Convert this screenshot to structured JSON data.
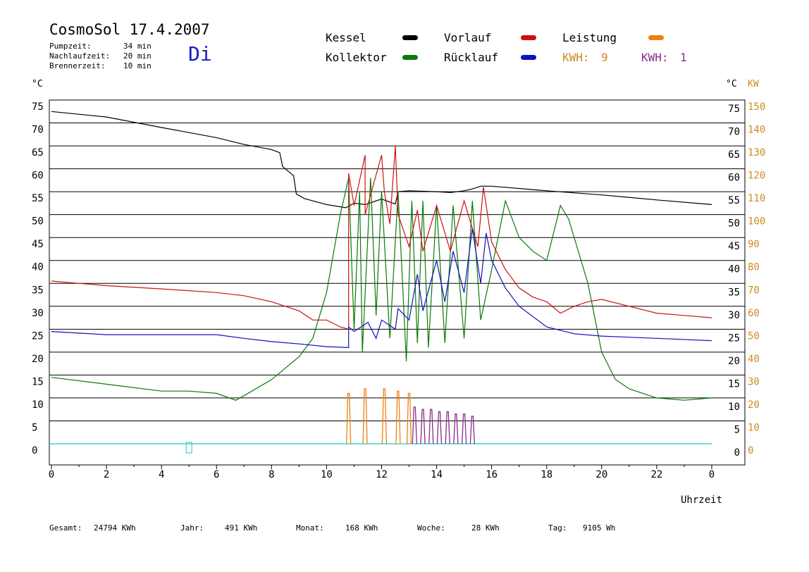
{
  "header": {
    "title": "CosmoSol 17.4.2007",
    "day": "Di",
    "timers": [
      {
        "label": "Pumpzeit:",
        "value": "34 min"
      },
      {
        "label": "Nachlaufzeit:",
        "value": "20 min"
      },
      {
        "label": "Brennerzeit:",
        "value": "10 min"
      }
    ]
  },
  "legend": {
    "kessel": "Kessel",
    "kollektor": "Kollektor",
    "vorlauf": "Vorlauf",
    "ruecklauf": "Rücklauf",
    "leistung": "Leistung",
    "kwh1_label": "KWH:",
    "kwh1_value": "9",
    "kwh2_label": "KWH:",
    "kwh2_value": "1"
  },
  "colors": {
    "kessel": "#000000",
    "kollektor": "#0a7a0a",
    "vorlauf": "#d01010",
    "ruecklauf": "#1010c0",
    "leistung": "#f08010",
    "kwh2": "#8a2a8a",
    "axis_kw": "#d08a20",
    "zero_line": "#40d0d0"
  },
  "axes": {
    "left_unit": "°C",
    "right_unit": "°C",
    "kw_unit": "KW",
    "xlabel": "Uhrzeit"
  },
  "footer": {
    "gesamt_label": "Gesamt:",
    "gesamt_value": "24794 KWh",
    "jahr_label": "Jahr:",
    "jahr_value": "491 KWh",
    "monat_label": "Monat:",
    "monat_value": "168 KWh",
    "woche_label": "Woche:",
    "woche_value": "28 KWh",
    "tag_label": "Tag:",
    "tag_value": "9105 Wh"
  },
  "chart_data": {
    "type": "line",
    "xlim": [
      0,
      24
    ],
    "ylim": [
      0,
      75
    ],
    "y2lim": [
      0,
      150
    ],
    "x_ticks": [
      "0",
      "2",
      "4",
      "6",
      "8",
      "10",
      "12",
      "14",
      "16",
      "18",
      "20",
      "22",
      "0"
    ],
    "y_ticks": [
      0,
      5,
      10,
      15,
      20,
      25,
      30,
      35,
      40,
      45,
      50,
      55,
      60,
      65,
      70,
      75
    ],
    "y2_ticks": [
      0,
      10,
      20,
      30,
      40,
      50,
      60,
      70,
      80,
      90,
      100,
      110,
      120,
      130,
      140,
      150
    ],
    "grid": true,
    "series": [
      {
        "name": "Kessel",
        "x": [
          0,
          2,
          4,
          6,
          7,
          8,
          8.3,
          8.4,
          8.6,
          8.8,
          8.9,
          9.2,
          10,
          10.7,
          11,
          11.4,
          12,
          12.5,
          12.6,
          13,
          14,
          14.5,
          15,
          15.3,
          15.6,
          16,
          18,
          20,
          22,
          24
        ],
        "y": [
          72.5,
          71.3,
          69,
          66.8,
          65.3,
          64.2,
          63.5,
          60.5,
          59.5,
          58.5,
          54.5,
          53.5,
          52.2,
          51.5,
          52.5,
          52.2,
          53.4,
          52.3,
          55,
          55.2,
          55,
          54.8,
          55.2,
          55.6,
          56.2,
          56.2,
          55.2,
          54.3,
          53.2,
          52.2
        ]
      },
      {
        "name": "Kollektor",
        "x": [
          0,
          2,
          4,
          5,
          6,
          6.7,
          7,
          8,
          9,
          9.5,
          10,
          10.5,
          10.8,
          11,
          11.2,
          11.3,
          11.6,
          11.8,
          12,
          12.3,
          12.6,
          12.9,
          13.1,
          13.3,
          13.5,
          13.7,
          14,
          14.3,
          14.6,
          15,
          15.3,
          15.6,
          16,
          16.5,
          17,
          17.5,
          18,
          18.5,
          18.8,
          19.5,
          20,
          20.5,
          21,
          22,
          23,
          24
        ],
        "y": [
          14.5,
          13,
          11.5,
          11.5,
          11,
          9.5,
          10.5,
          14,
          19,
          23,
          33,
          50,
          58,
          25,
          55,
          20,
          58,
          28,
          55,
          23,
          55,
          18,
          53,
          22,
          53,
          21,
          52,
          22,
          52,
          23,
          53,
          27,
          38,
          53,
          45,
          42,
          40,
          52,
          49,
          35,
          20,
          14,
          12,
          10,
          9.5,
          10
        ]
      },
      {
        "name": "Vorlauf",
        "x": [
          0,
          2,
          4,
          6,
          7,
          8,
          9,
          9.5,
          10,
          10.5,
          10.8,
          10.8,
          11,
          11.4,
          11.4,
          12,
          12.1,
          12.3,
          12.5,
          12.6,
          13,
          13.3,
          13.5,
          14,
          14.5,
          15,
          15.5,
          15.7,
          16,
          16.5,
          17,
          17.5,
          18,
          18.5,
          19,
          19.5,
          20,
          21,
          22,
          23,
          24
        ],
        "y": [
          35.5,
          34.5,
          33.8,
          33,
          32.3,
          31,
          29,
          27,
          27,
          25.5,
          25,
          59,
          52,
          63,
          50,
          63,
          55,
          48,
          65,
          50,
          43,
          51,
          42,
          52,
          42,
          53,
          43,
          56,
          44,
          38,
          34,
          32,
          31,
          28.5,
          30,
          31,
          31.5,
          30,
          28.5,
          28,
          27.5
        ]
      },
      {
        "name": "Rücklauf",
        "x": [
          0,
          2,
          4,
          6,
          7,
          8,
          9,
          10,
          10.8,
          10.8,
          11,
          11.5,
          11.8,
          12,
          12.5,
          12.6,
          13,
          13.3,
          13.5,
          14,
          14.3,
          14.6,
          15,
          15.3,
          15.6,
          15.8,
          16,
          16.5,
          17,
          18,
          19,
          20,
          22,
          24
        ],
        "y": [
          24.5,
          23.8,
          23.8,
          23.8,
          23,
          22.3,
          21.8,
          21.2,
          21,
          25.5,
          24.5,
          26.5,
          23,
          27,
          25,
          29.5,
          27,
          37,
          29,
          40,
          31,
          42,
          33,
          47,
          35,
          46,
          40,
          34,
          30,
          25.5,
          24,
          23.5,
          23,
          22.5
        ]
      },
      {
        "name": "Leistung",
        "x": [
          10.8,
          11.4,
          12.1,
          12.6,
          13.0
        ],
        "y": [
          11,
          12,
          12,
          11.5,
          11
        ]
      },
      {
        "name": "Brennerleistung",
        "x": [
          13.2,
          13.5,
          13.8,
          14.1,
          14.4,
          14.7,
          15.0,
          15.3
        ],
        "y": [
          8,
          7.5,
          7.5,
          7,
          7,
          6.5,
          6.5,
          6
        ]
      }
    ]
  }
}
